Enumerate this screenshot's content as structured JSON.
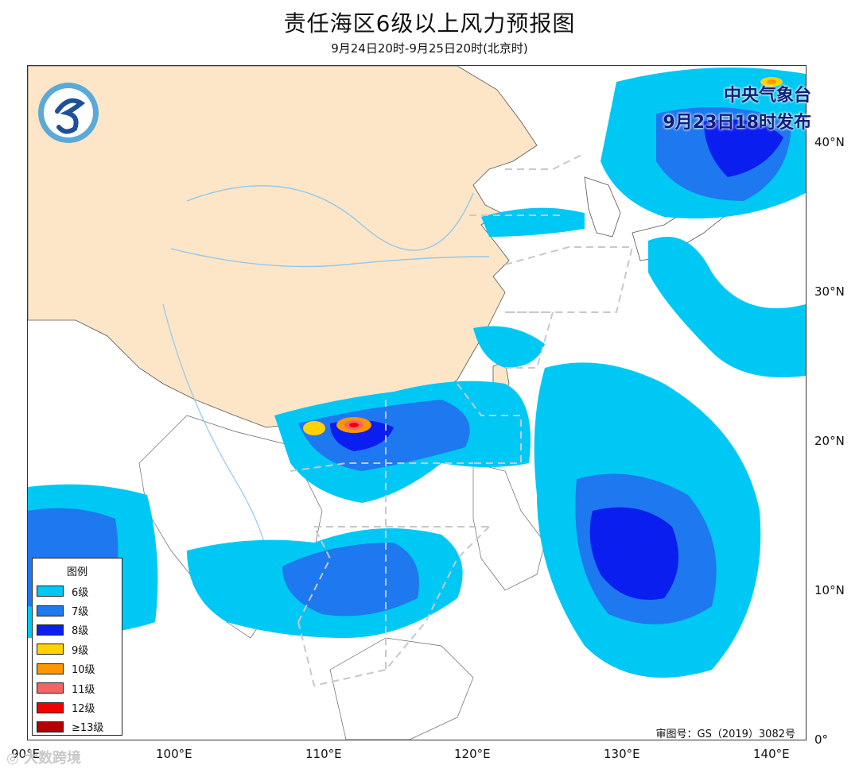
{
  "header": {
    "title": "责任海区6级以上风力预报图",
    "subtitle": "9月24日20时-9月25日20时(北京时)"
  },
  "issuer": {
    "line1": "中央气象台",
    "line2": "9月23日18时发布",
    "logo_icon": "cma-logo-icon"
  },
  "axes": {
    "lat_labels": [
      "40°N",
      "30°N",
      "20°N",
      "10°N",
      "0°"
    ],
    "lon_labels": [
      "90°E",
      "100°E",
      "110°E",
      "120°E",
      "130°E",
      "140°E"
    ]
  },
  "legend": {
    "title": "图例",
    "items": [
      {
        "label": "6级",
        "color": "#00c8f5"
      },
      {
        "label": "7级",
        "color": "#1e78f0"
      },
      {
        "label": "8级",
        "color": "#0a1ef0"
      },
      {
        "label": "9级",
        "color": "#ffd200"
      },
      {
        "label": "10级",
        "color": "#ff9600"
      },
      {
        "label": "11级",
        "color": "#f56464"
      },
      {
        "label": "12级",
        "color": "#f50000"
      },
      {
        "label": "≥13级",
        "color": "#b40000"
      }
    ]
  },
  "footer": {
    "approval": "审图号：GS（2019）3082号",
    "watermark": "大数跨境"
  },
  "colors": {
    "land_china": "#fde6c8",
    "land_other": "#ffffff",
    "sea": "#ffffff",
    "boundary": "#555555",
    "river": "#8ec8ee",
    "zone_line": "#c8c8c8"
  }
}
